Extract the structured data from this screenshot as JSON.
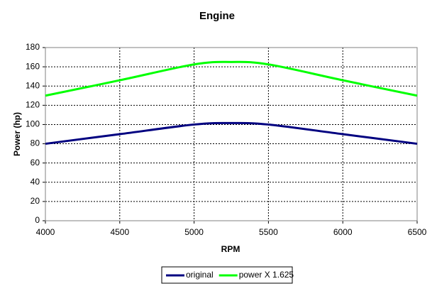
{
  "chart_data": {
    "type": "line",
    "title": "Engine",
    "x_label": "RPM",
    "y_label": "Power (hp)",
    "x": [
      4000,
      4500,
      5000,
      5250,
      5500,
      6000,
      6500
    ],
    "series": [
      {
        "name": "original",
        "color": "#000080",
        "values": [
          80,
          90,
          100,
          101.5,
          100,
          90,
          80
        ]
      },
      {
        "name": "power X 1.625",
        "color": "#00ff00",
        "values": [
          130,
          146,
          162.5,
          165,
          162.5,
          146,
          130
        ]
      }
    ],
    "xlim": [
      4000,
      6500
    ],
    "xticks": [
      4000,
      4500,
      5000,
      5500,
      6000,
      6500
    ],
    "ylim": [
      0,
      180
    ],
    "yticks": [
      0,
      20,
      40,
      60,
      80,
      100,
      120,
      140,
      160,
      180
    ],
    "grid": true,
    "legend": "bottom"
  }
}
